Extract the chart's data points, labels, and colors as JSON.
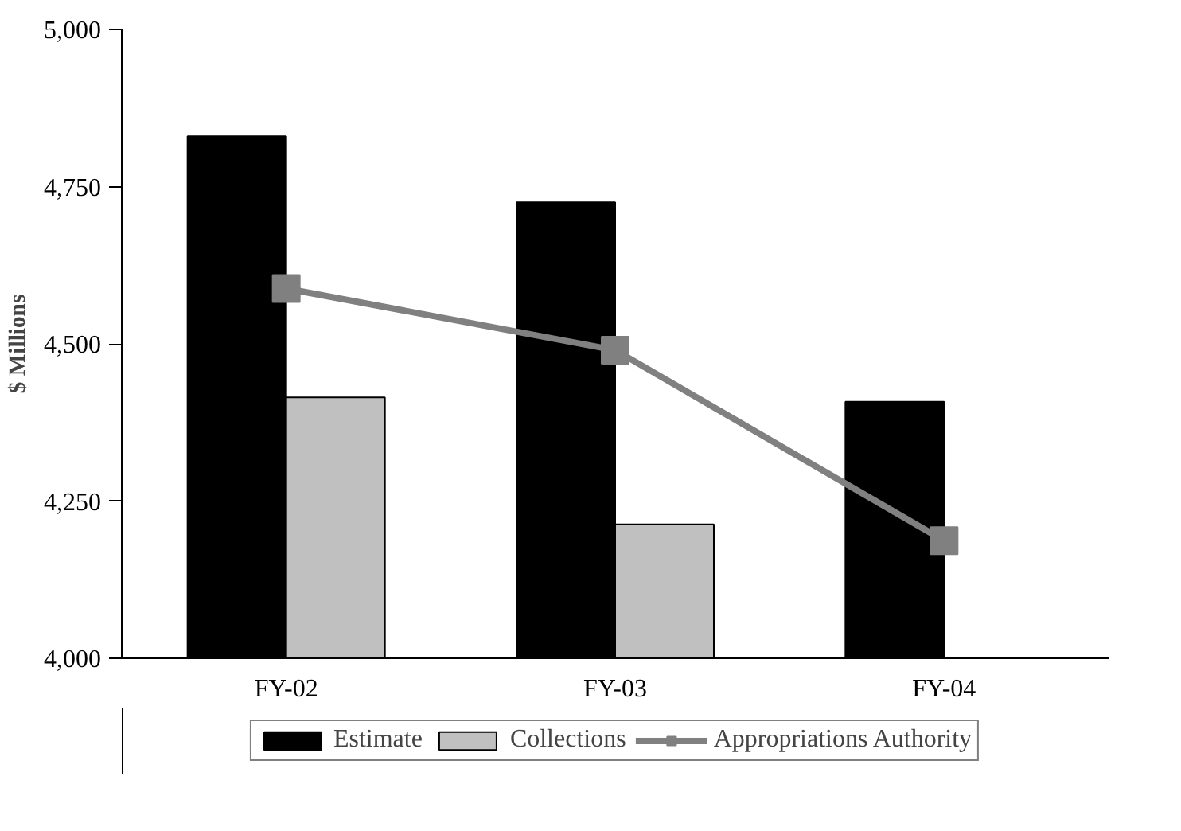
{
  "chart_data": {
    "type": "bar",
    "ylabel": "$ Millions",
    "categories": [
      "FY-02",
      "FY-03",
      "FY-04"
    ],
    "series": [
      {
        "name": "Estimate",
        "color": "#000000",
        "values": [
          4830,
          4725,
          4408
        ]
      },
      {
        "name": "Collections",
        "color": "#c0c0c0",
        "values": [
          4415,
          4213,
          null
        ]
      },
      {
        "name": "Appropriations Authority",
        "type": "line",
        "color": "#808080",
        "marker": "square",
        "values": [
          4588,
          4490,
          4187
        ]
      }
    ],
    "ylim": [
      4000,
      5000
    ],
    "yticks": [
      {
        "value": 4000,
        "label": "4,000"
      },
      {
        "value": 4250,
        "label": "4,250"
      },
      {
        "value": 4500,
        "label": "4,500"
      },
      {
        "value": 4750,
        "label": "4,750"
      },
      {
        "value": 5000,
        "label": "5,000"
      }
    ],
    "grid": false,
    "legend": "bottom"
  }
}
